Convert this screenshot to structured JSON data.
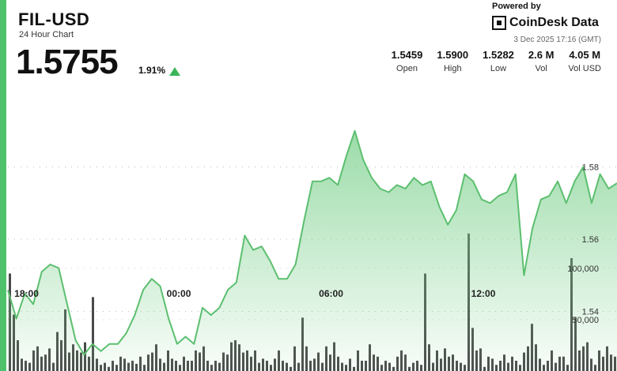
{
  "header": {
    "symbol": "FIL-USD",
    "subtitle": "24 Hour Chart",
    "price": "1.5755",
    "change": "1.91%",
    "powered_by": "Powered by",
    "brand": "CoinDesk Data",
    "timestamp": "3 Dec 2025 17:16 (GMT)"
  },
  "stats": [
    {
      "value": "1.5459",
      "label": "Open"
    },
    {
      "value": "1.5900",
      "label": "High"
    },
    {
      "value": "1.5282",
      "label": "Low"
    },
    {
      "value": "2.6 M",
      "label": "Vol"
    },
    {
      "value": "4.05 M",
      "label": "Vol USD"
    }
  ],
  "colors": {
    "accent": "#4fc16a",
    "line": "#5cbf6f",
    "fill": "#7bd08c",
    "volume": "#4a4a4a"
  },
  "chart_data": {
    "type": "area",
    "price_series": {
      "x": [
        "17:16",
        "17:36",
        "17:56",
        "18:16",
        "18:36",
        "18:56",
        "19:16",
        "19:36",
        "19:56",
        "20:16",
        "20:36",
        "20:56",
        "21:16",
        "21:36",
        "21:56",
        "22:16",
        "22:36",
        "22:56",
        "23:16",
        "23:36",
        "23:56",
        "00:16",
        "00:36",
        "00:56",
        "01:16",
        "01:36",
        "01:56",
        "02:16",
        "02:36",
        "02:56",
        "03:16",
        "03:36",
        "03:56",
        "04:16",
        "04:36",
        "04:56",
        "05:16",
        "05:36",
        "05:56",
        "06:16",
        "06:36",
        "06:56",
        "07:16",
        "07:36",
        "07:56",
        "08:16",
        "08:36",
        "08:56",
        "09:16",
        "09:36",
        "09:56",
        "10:16",
        "10:36",
        "10:56",
        "11:16",
        "11:36",
        "11:56",
        "12:16",
        "12:36",
        "12:56",
        "13:16",
        "13:36",
        "13:56",
        "14:16",
        "14:36",
        "14:56",
        "15:16",
        "15:36",
        "15:56",
        "16:16",
        "16:36",
        "16:56",
        "17:16"
      ],
      "values": [
        1.5459,
        1.538,
        1.545,
        1.542,
        1.551,
        1.553,
        1.552,
        1.542,
        1.532,
        1.528,
        1.531,
        1.529,
        1.531,
        1.531,
        1.534,
        1.539,
        1.546,
        1.549,
        1.547,
        1.538,
        1.531,
        1.533,
        1.531,
        1.541,
        1.539,
        1.541,
        1.546,
        1.548,
        1.561,
        1.557,
        1.558,
        1.554,
        1.549,
        1.549,
        1.553,
        1.565,
        1.576,
        1.576,
        1.577,
        1.575,
        1.583,
        1.59,
        1.582,
        1.577,
        1.574,
        1.573,
        1.575,
        1.574,
        1.577,
        1.575,
        1.576,
        1.569,
        1.564,
        1.568,
        1.578,
        1.576,
        1.571,
        1.57,
        1.572,
        1.573,
        1.578,
        1.55,
        1.563,
        1.571,
        1.572,
        1.576,
        1.57,
        1.576,
        1.58,
        1.57,
        1.578,
        1.574,
        1.5755
      ]
    },
    "volume_values": [
      95000,
      55000,
      30000,
      12000,
      10000,
      8000,
      20000,
      24000,
      14000,
      16000,
      22000,
      8000,
      38000,
      30000,
      60000,
      18000,
      26000,
      20000,
      18000,
      28000,
      14000,
      72000,
      12000,
      6000,
      8000,
      4000,
      10000,
      6000,
      14000,
      12000,
      8000,
      10000,
      7000,
      14000,
      6000,
      16000,
      18000,
      26000,
      12000,
      8000,
      20000,
      12000,
      10000,
      6000,
      14000,
      10000,
      10000,
      20000,
      18000,
      24000,
      10000,
      6000,
      10000,
      8000,
      18000,
      16000,
      28000,
      30000,
      26000,
      18000,
      20000,
      14000,
      20000,
      8000,
      12000,
      10000,
      6000,
      12000,
      20000,
      10000,
      8000,
      4000,
      24000,
      8000,
      52000,
      24000,
      10000,
      12000,
      18000,
      8000,
      24000,
      16000,
      28000,
      14000,
      8000,
      6000,
      12000,
      4000,
      20000,
      10000,
      10000,
      26000,
      16000,
      14000,
      6000,
      10000,
      8000,
      4000,
      14000,
      20000,
      16000,
      4000,
      8000,
      10000,
      6000,
      95000,
      26000,
      8000,
      20000,
      12000,
      22000,
      14000,
      16000,
      10000,
      8000,
      6000,
      134000,
      42000,
      20000,
      22000,
      4000,
      14000,
      12000,
      6000,
      10000,
      16000,
      8000,
      14000,
      10000,
      6000,
      18000,
      24000,
      46000,
      26000,
      12000,
      6000,
      10000,
      20000,
      8000,
      14000,
      14000,
      6000,
      110000,
      52000,
      20000,
      24000,
      28000,
      12000,
      6000,
      20000,
      14000,
      24000,
      16000,
      14000
    ],
    "x_ticks": [
      "18:00",
      "00:00",
      "06:00",
      "12:00"
    ],
    "y_ticks": [
      "1.54",
      "1.56",
      "1.58"
    ],
    "volume_ticks": [
      "50,000",
      "100,000"
    ],
    "ylim": [
      1.5235,
      1.6035
    ],
    "volume_max": 150000,
    "grid": true
  }
}
